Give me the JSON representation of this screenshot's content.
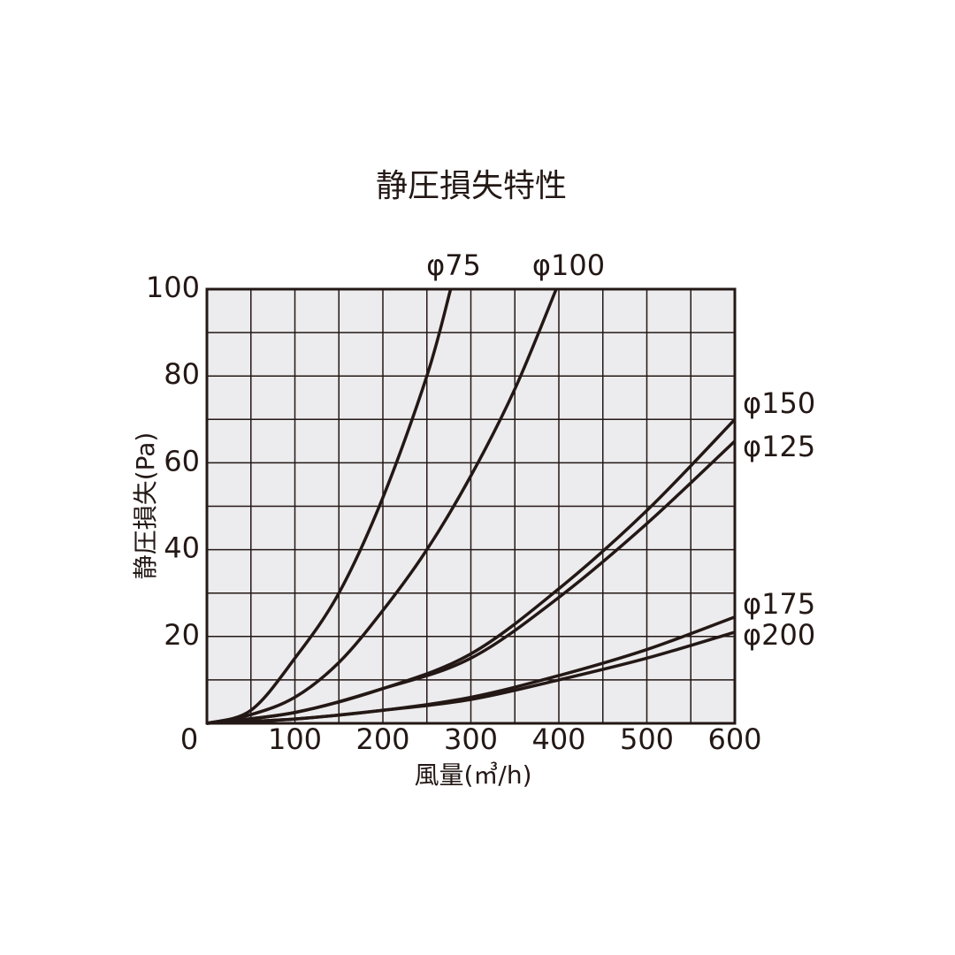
{
  "chart_data": {
    "type": "line",
    "title": "静圧損失特性",
    "x_label": "風量(㎥/h)",
    "y_label": "静圧損失(Pa)",
    "xlim": [
      0,
      600
    ],
    "ylim": [
      0,
      100
    ],
    "xticks": [
      0,
      100,
      200,
      300,
      400,
      500,
      600
    ],
    "yticks": [
      20,
      40,
      60,
      80,
      100
    ],
    "x_minor_ticks": [
      50,
      150,
      250,
      350,
      450,
      550
    ],
    "y_minor_ticks": [
      10,
      30,
      50,
      70,
      90
    ],
    "grid": true,
    "plot_background": "#ecebed",
    "series": [
      {
        "name": "φ75",
        "color": "#231815",
        "x": [
          0,
          50,
          100,
          150,
          200,
          250,
          277
        ],
        "values": [
          0,
          3,
          15,
          30,
          52,
          80,
          100
        ]
      },
      {
        "name": "φ100",
        "color": "#231815",
        "x": [
          0,
          50,
          100,
          150,
          200,
          250,
          300,
          350,
          397
        ],
        "values": [
          0,
          2,
          6,
          14,
          26,
          40,
          57,
          77,
          100
        ]
      },
      {
        "name": "φ150",
        "color": "#231815",
        "x": [
          0,
          100,
          200,
          300,
          400,
          500,
          600
        ],
        "values": [
          0,
          2.5,
          8,
          16,
          31,
          49,
          70
        ]
      },
      {
        "name": "φ125",
        "color": "#231815",
        "x": [
          0,
          100,
          200,
          300,
          400,
          500,
          600
        ],
        "values": [
          0,
          2.5,
          8,
          15,
          29,
          46,
          65
        ]
      },
      {
        "name": "φ175",
        "color": "#231815",
        "x": [
          0,
          100,
          200,
          300,
          400,
          500,
          600
        ],
        "values": [
          0,
          1,
          3,
          6,
          11,
          17,
          24.5
        ]
      },
      {
        "name": "φ200",
        "color": "#231815",
        "x": [
          0,
          100,
          200,
          300,
          400,
          500,
          600
        ],
        "values": [
          0,
          1,
          3,
          5.5,
          10,
          15,
          21
        ]
      }
    ]
  }
}
